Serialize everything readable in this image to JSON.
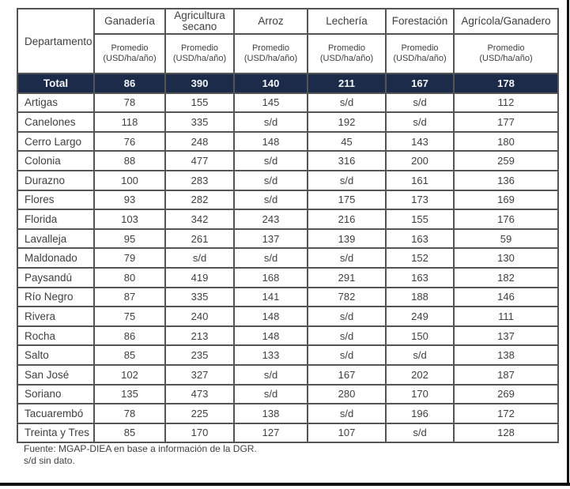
{
  "table": {
    "corner_label": "Departamento",
    "sub_line1": "Promedio",
    "sub_line2": "(USD/ha/año)",
    "columns": [
      "Ganadería",
      "Agricultura secano",
      "Arroz",
      "Lechería",
      "Forestación",
      "Agrícola/Ganadero"
    ],
    "total": {
      "label": "Total",
      "values": [
        "86",
        "390",
        "140",
        "211",
        "167",
        "178"
      ]
    },
    "rows": [
      {
        "name": "Artigas",
        "values": [
          "78",
          "155",
          "145",
          "s/d",
          "s/d",
          "112"
        ]
      },
      {
        "name": "Canelones",
        "values": [
          "118",
          "335",
          "s/d",
          "192",
          "s/d",
          "177"
        ]
      },
      {
        "name": "Cerro Largo",
        "values": [
          "76",
          "248",
          "148",
          "45",
          "143",
          "180"
        ]
      },
      {
        "name": "Colonia",
        "values": [
          "88",
          "477",
          "s/d",
          "316",
          "200",
          "259"
        ]
      },
      {
        "name": "Durazno",
        "values": [
          "100",
          "283",
          "s/d",
          "s/d",
          "161",
          "136"
        ]
      },
      {
        "name": "Flores",
        "values": [
          "93",
          "282",
          "s/d",
          "175",
          "173",
          "169"
        ]
      },
      {
        "name": "Florida",
        "values": [
          "103",
          "342",
          "243",
          "216",
          "155",
          "176"
        ]
      },
      {
        "name": "Lavalleja",
        "values": [
          "95",
          "261",
          "137",
          "139",
          "163",
          "59"
        ]
      },
      {
        "name": "Maldonado",
        "values": [
          "79",
          "s/d",
          "s/d",
          "s/d",
          "152",
          "130"
        ]
      },
      {
        "name": "Paysandú",
        "values": [
          "80",
          "419",
          "168",
          "291",
          "163",
          "182"
        ]
      },
      {
        "name": "Río Negro",
        "values": [
          "87",
          "335",
          "141",
          "782",
          "188",
          "146"
        ]
      },
      {
        "name": "Rivera",
        "values": [
          "75",
          "240",
          "148",
          "s/d",
          "249",
          "111"
        ]
      },
      {
        "name": "Rocha",
        "values": [
          "86",
          "213",
          "148",
          "s/d",
          "150",
          "137"
        ]
      },
      {
        "name": "Salto",
        "values": [
          "85",
          "235",
          "133",
          "s/d",
          "s/d",
          "138"
        ]
      },
      {
        "name": "San José",
        "values": [
          "102",
          "327",
          "s/d",
          "167",
          "202",
          "187"
        ]
      },
      {
        "name": "Soriano",
        "values": [
          "135",
          "473",
          "s/d",
          "280",
          "170",
          "269"
        ]
      },
      {
        "name": "Tacuarembó",
        "values": [
          "78",
          "225",
          "138",
          "s/d",
          "196",
          "172"
        ]
      },
      {
        "name": "Treinta y Tres",
        "values": [
          "85",
          "170",
          "127",
          "107",
          "s/d",
          "128"
        ]
      }
    ]
  },
  "footer": {
    "line1": "Fuente: MGAP-DIEA en base a información de la DGR.",
    "line2": "s/d sin dato."
  },
  "colors": {
    "total_row_bg": "#1c2b4a",
    "total_row_text": "#f4f6f9",
    "border": "#545454",
    "text": "#3f3f3f",
    "frame": "#111111"
  }
}
